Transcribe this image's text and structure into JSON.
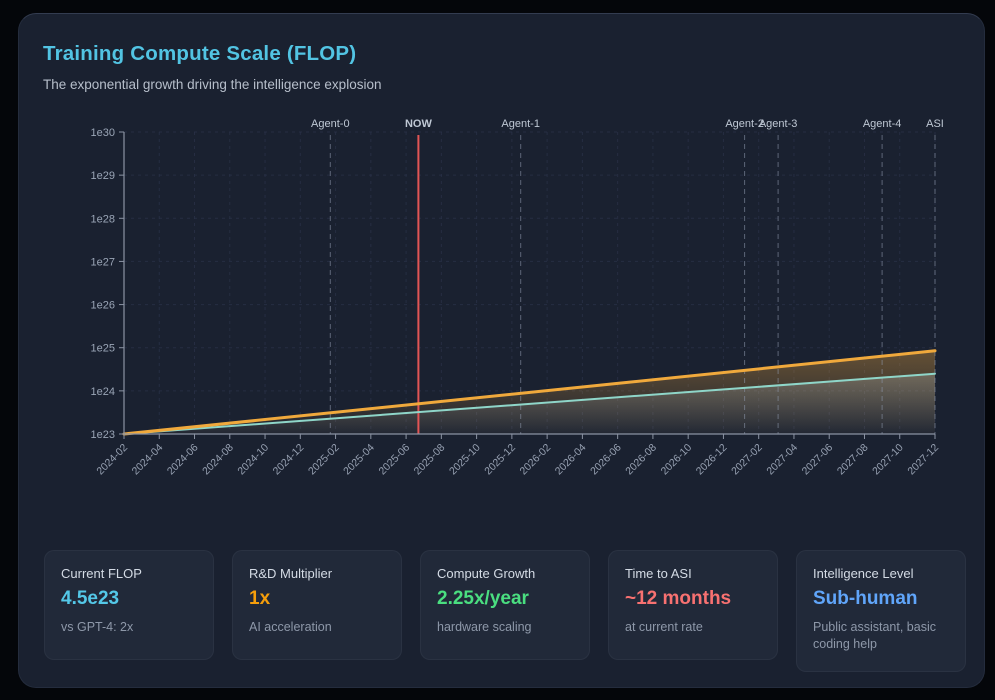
{
  "header": {
    "title": "Training Compute Scale (FLOP)",
    "title_color": "#52c4e3",
    "subtitle": "The exponential growth driving the intelligence explosion"
  },
  "chart_data": {
    "type": "area",
    "y_scale": "log10",
    "x_unit": "months since 2024-02",
    "x_range": [
      0,
      46
    ],
    "y_exp_range": [
      23,
      30
    ],
    "x_tick_labels": [
      "2024-02",
      "2024-04",
      "2024-06",
      "2024-08",
      "2024-10",
      "2024-12",
      "2025-02",
      "2025-04",
      "2025-06",
      "2025-08",
      "2025-10",
      "2025-12",
      "2026-02",
      "2026-04",
      "2026-06",
      "2026-08",
      "2026-10",
      "2026-12",
      "2027-02",
      "2027-04",
      "2027-06",
      "2027-08",
      "2027-10",
      "2027-12"
    ],
    "x_tick_months": [
      0,
      2,
      4,
      6,
      8,
      10,
      12,
      14,
      16,
      18,
      20,
      22,
      24,
      26,
      28,
      30,
      32,
      34,
      36,
      38,
      40,
      42,
      44,
      46
    ],
    "y_tick_labels": [
      "1e23",
      "1e24",
      "1e25",
      "1e26",
      "1e27",
      "1e28",
      "1e29",
      "1e30"
    ],
    "y_tick_exps": [
      23,
      24,
      25,
      26,
      27,
      28,
      29,
      30
    ],
    "series": [
      {
        "id": "accelerated-compute",
        "color": "#f0a93c",
        "line_width": 3,
        "fill_color": "#f0a93c",
        "fill_opacity": 0.35,
        "points_month_value": [
          [
            0,
            1e+23
          ],
          [
            46,
            8.5e+24
          ]
        ]
      },
      {
        "id": "baseline-compute",
        "color": "#8fd6c9",
        "line_width": 2,
        "fill_color": "#cdd8d5",
        "fill_opacity": 0.25,
        "points_month_value": [
          [
            0,
            1e+23
          ],
          [
            46,
            2.5e+24
          ]
        ]
      }
    ],
    "markers": [
      {
        "label": "Agent-0",
        "month": 11.7,
        "style": "dashed",
        "color": "#8b95a8"
      },
      {
        "label": "NOW",
        "month": 16.7,
        "style": "solid",
        "color": "#e25555"
      },
      {
        "label": "Agent-1",
        "month": 22.5,
        "style": "dashed",
        "color": "#8b95a8"
      },
      {
        "label": "Agent-2",
        "month": 35.2,
        "style": "dashed",
        "color": "#8b95a8"
      },
      {
        "label": "Agent-3",
        "month": 37.1,
        "style": "dashed",
        "color": "#8b95a8"
      },
      {
        "label": "Agent-4",
        "month": 43.0,
        "style": "dashed",
        "color": "#8b95a8"
      },
      {
        "label": "ASI",
        "month": 46.0,
        "style": "dashed",
        "color": "#8b95a8"
      }
    ]
  },
  "stats": [
    {
      "label": "Current FLOP",
      "value": "4.5e23",
      "value_color": "#54c8e8",
      "sub": "vs GPT-4: 2x"
    },
    {
      "label": "R&D Multiplier",
      "value": "1x",
      "value_color": "#f59e0b",
      "sub": "AI acceleration"
    },
    {
      "label": "Compute Growth",
      "value": "2.25x/year",
      "value_color": "#4ade80",
      "sub": "hardware scaling"
    },
    {
      "label": "Time to ASI",
      "value": "~12 months",
      "value_color": "#f87171",
      "sub": "at current rate"
    },
    {
      "label": "Intelligence Level",
      "value": "Sub-human",
      "value_color": "#60a5fa",
      "sub": "Public assistant, basic coding help"
    }
  ]
}
